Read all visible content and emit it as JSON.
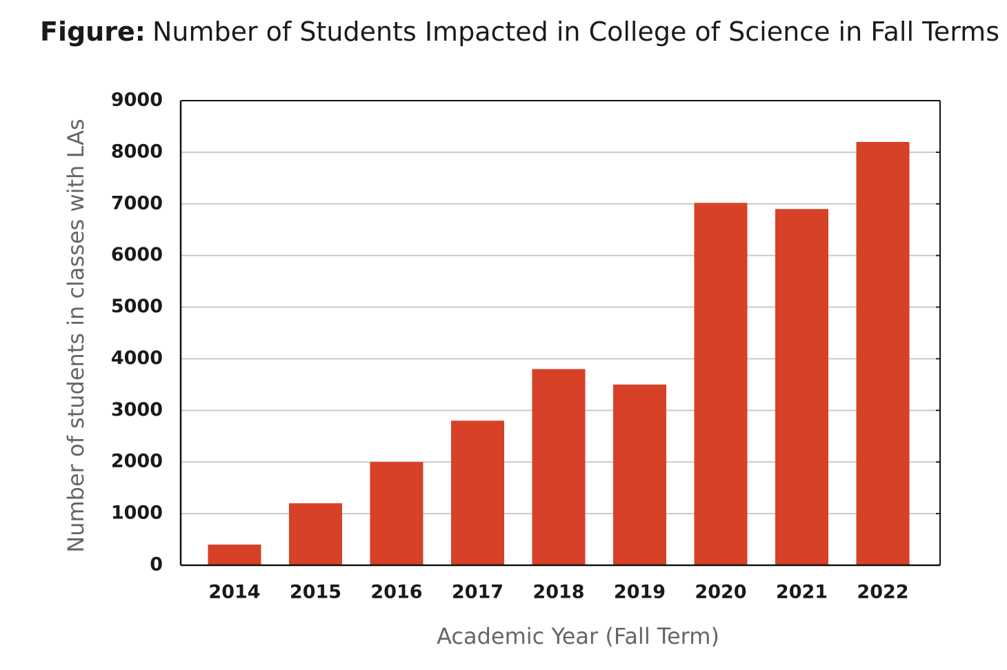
{
  "chart_data": {
    "type": "bar",
    "title_prefix": "Figure:",
    "title": "Number of Students Impacted in College of Science in Fall Terms",
    "x_label": "Academic Year (Fall Term)",
    "y_label": "Number of  students in classes with LAs",
    "categories": [
      "2014",
      "2015",
      "2016",
      "2017",
      "2018",
      "2019",
      "2020",
      "2021",
      "2022"
    ],
    "values": [
      400,
      1200,
      2000,
      2800,
      3800,
      3500,
      7020,
      6900,
      8200
    ],
    "color": "#d64127",
    "ylim": [
      0,
      9000
    ],
    "yticks": [
      0,
      1000,
      2000,
      3000,
      4000,
      5000,
      6000,
      7000,
      8000,
      9000
    ],
    "grid": true
  }
}
